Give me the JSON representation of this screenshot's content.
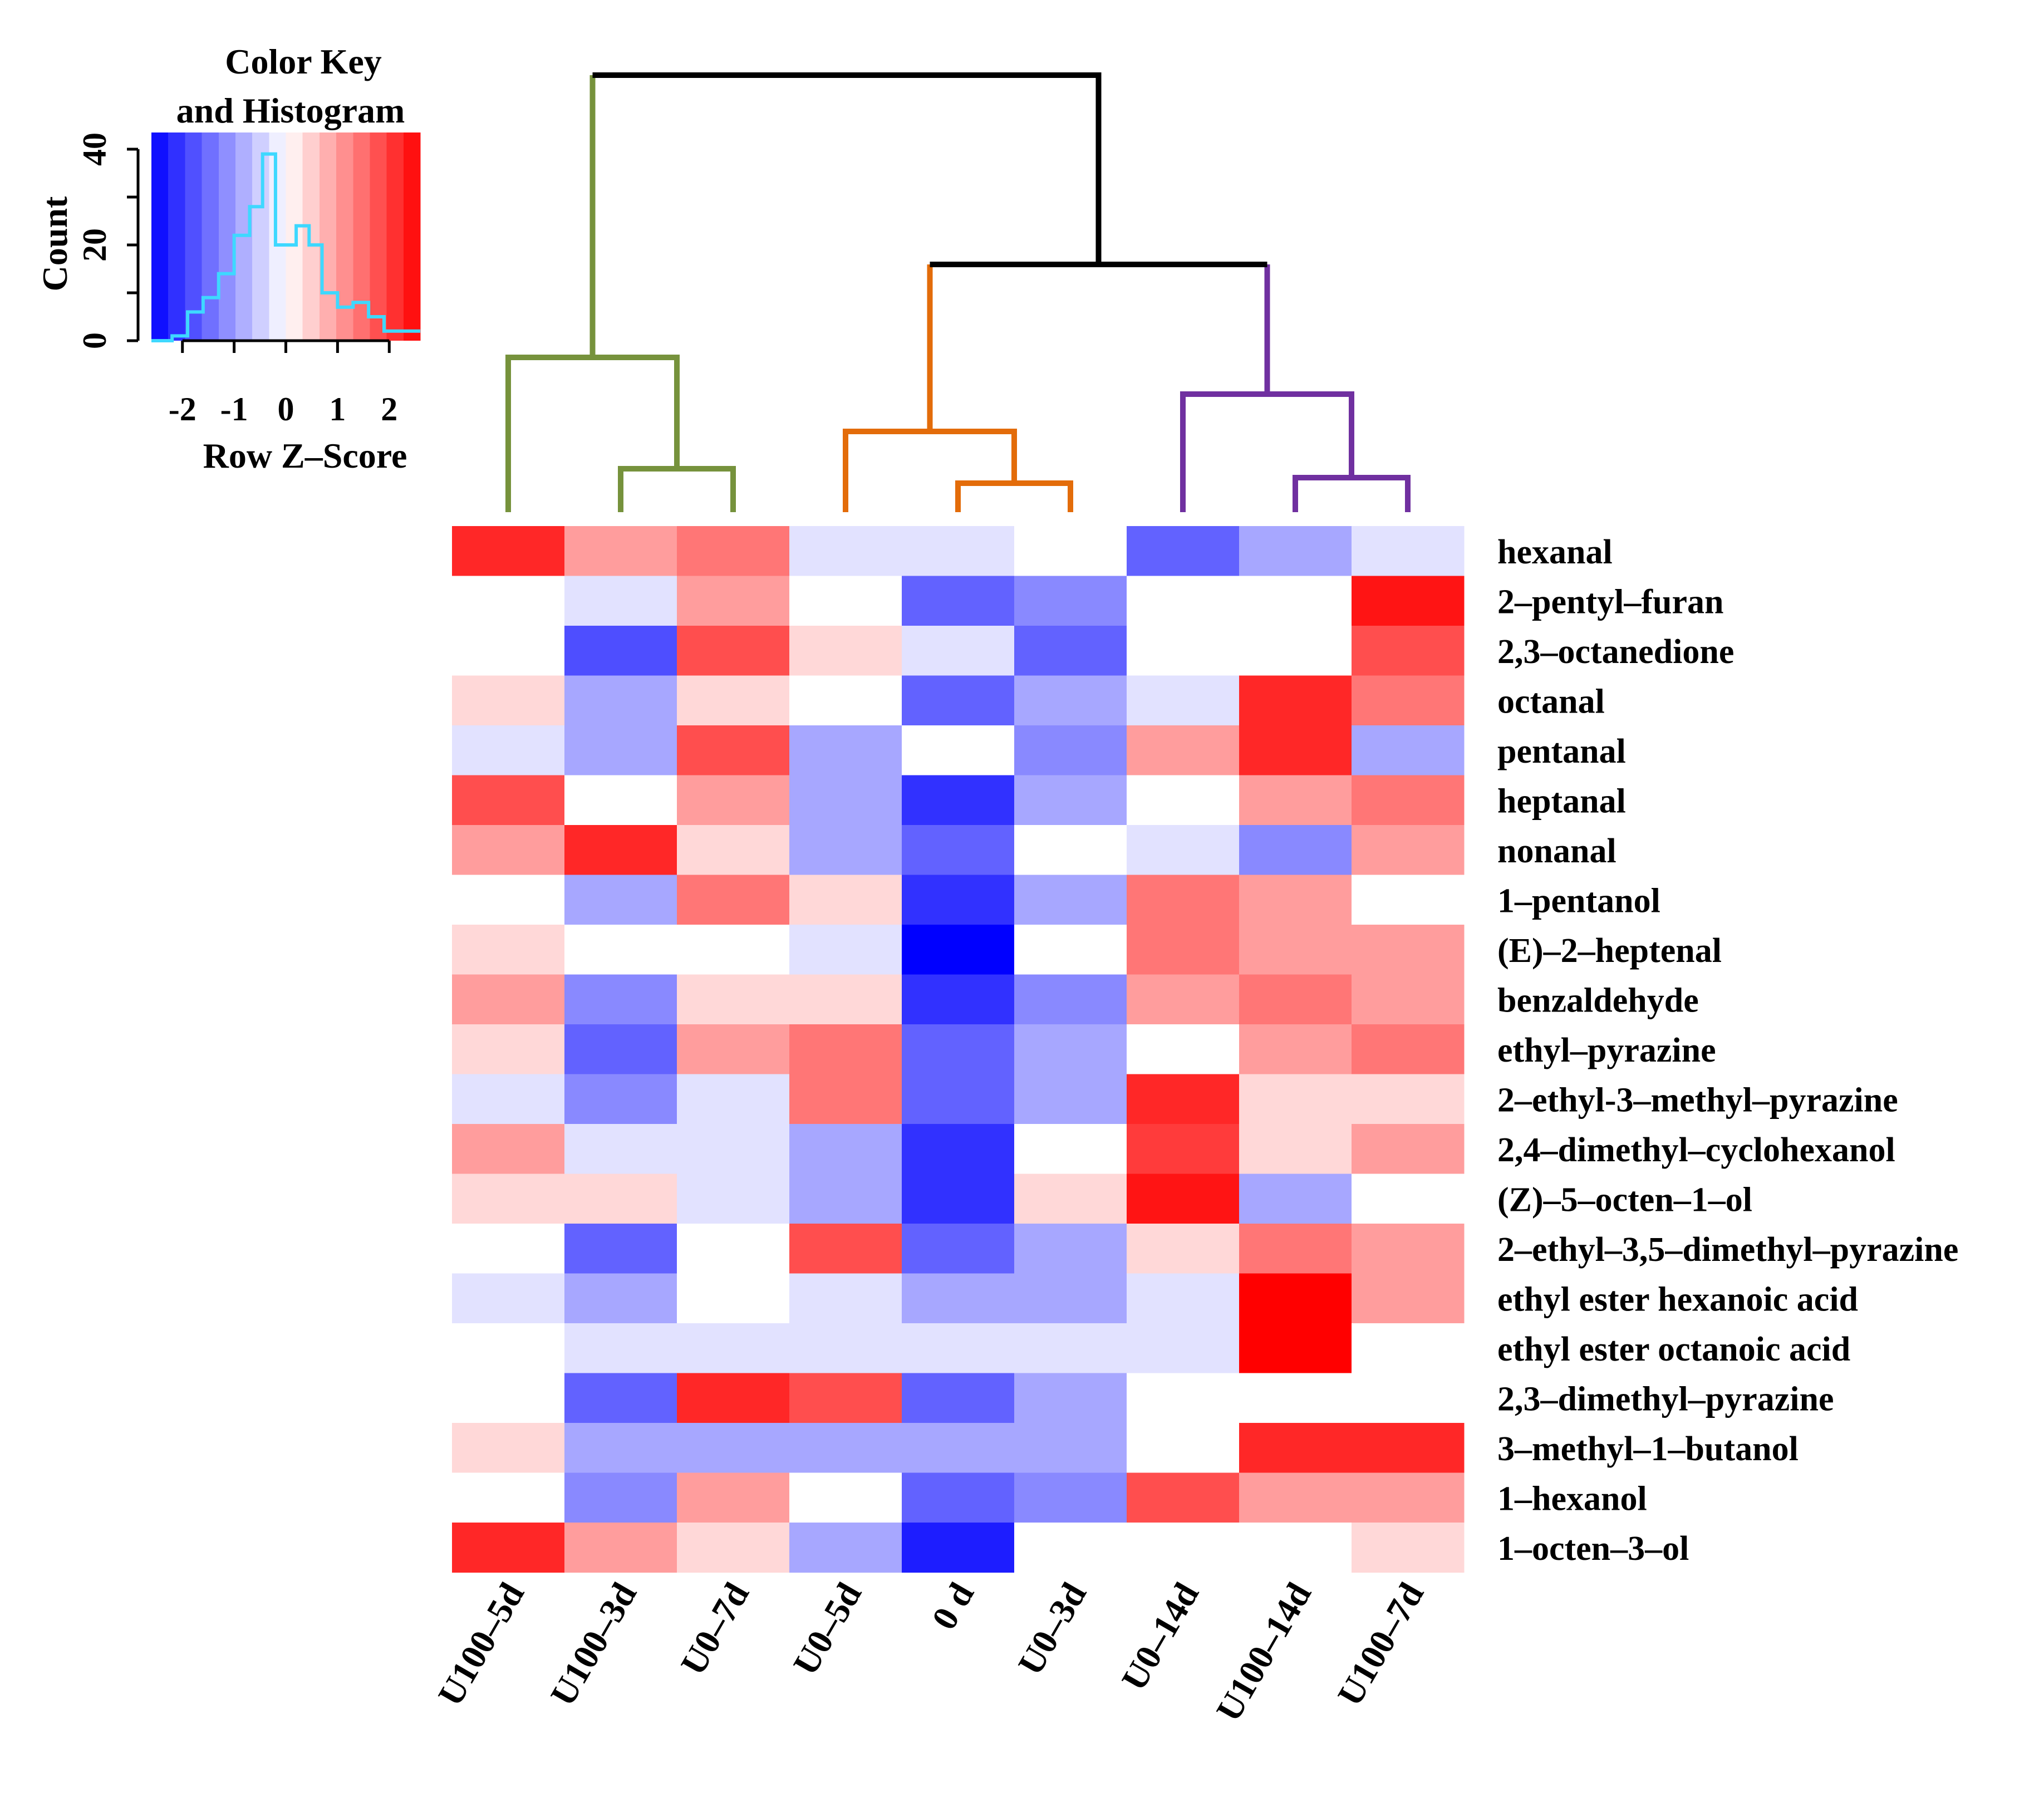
{
  "chart_data": {
    "type": "heatmap",
    "title": "",
    "color_key": {
      "title_line1": "Color Key",
      "title_line2": "and Histogram",
      "xlabel": "Row Z–Score",
      "ylabel": "Count",
      "xticks": [
        "-2",
        "-1",
        "0",
        "1",
        "2"
      ],
      "yticks": [
        "0",
        "20",
        "40"
      ],
      "x_range": [
        -2.6,
        2.6
      ],
      "y_range": [
        0,
        40
      ],
      "low_color": "#0000ff",
      "mid_color": "#ffffff",
      "high_color": "#ff0000",
      "histogram_color": "#3ed8ff",
      "histogram": {
        "bin_edges": [
          -2.6,
          -2.2,
          -1.9,
          -1.6,
          -1.3,
          -1.0,
          -0.7,
          -0.45,
          -0.2,
          0.2,
          0.45,
          0.7,
          1.0,
          1.3,
          1.6,
          1.9,
          2.2,
          2.6
        ],
        "counts": [
          0,
          1,
          6,
          9,
          14,
          22,
          28,
          39,
          20,
          24,
          20,
          10,
          7,
          8,
          5,
          2,
          2
        ]
      }
    },
    "dendrogram_colors": {
      "root": "#000000",
      "group1": "#76923c",
      "group2": "#e36c0a",
      "group3": "#7030a0"
    },
    "columns": [
      "U100–5d",
      "U100–3d",
      "U0–7d",
      "U0–5d",
      "0 d",
      "U0–3d",
      "U0–14d",
      "U100–14d",
      "U100–7d"
    ],
    "rows": [
      "hexanal",
      "2–pentyl–furan",
      "2,3–octanedione",
      "octanal",
      "pentanal",
      "heptanal",
      "nonanal",
      "1–pentanol",
      "(E)–2–heptenal",
      "benzaldehyde",
      "ethyl–pyrazine",
      "2–ethyl-3–methyl–pyrazine",
      "2,4–dimethyl–cyclohexanol",
      "(Z)–5–octen–1–ol",
      "2–ethyl–3,5–dimethyl–pyrazine",
      "ethyl ester hexanoic acid",
      "ethyl ester octanoic acid",
      "2,3–dimethyl–pyrazine",
      "3–methyl–1–butanol",
      "1–hexanol",
      "1–octen–3–ol"
    ],
    "values": [
      [
        2.2,
        1.0,
        1.4,
        -0.3,
        -0.3,
        0,
        -1.6,
        -0.9,
        -0.3
      ],
      [
        0,
        -0.3,
        1.0,
        0,
        -1.6,
        -1.2,
        0,
        0,
        2.4
      ],
      [
        0,
        -1.8,
        1.8,
        0.4,
        -0.3,
        -1.6,
        0,
        0,
        1.8
      ],
      [
        0.4,
        -0.9,
        0.4,
        0,
        -1.6,
        -0.9,
        -0.3,
        2.2,
        1.4
      ],
      [
        -0.3,
        -0.9,
        1.8,
        -0.9,
        0,
        -1.2,
        1.0,
        2.2,
        -0.9
      ],
      [
        1.8,
        0,
        1.0,
        -0.9,
        -2.1,
        -0.9,
        0,
        1.0,
        1.4
      ],
      [
        1.0,
        2.2,
        0.4,
        -0.9,
        -1.6,
        0,
        -0.3,
        -1.2,
        1.0
      ],
      [
        0,
        -0.9,
        1.4,
        0.4,
        -2.1,
        -0.9,
        1.4,
        1.0,
        0
      ],
      [
        0.4,
        0,
        0,
        -0.3,
        -2.6,
        0,
        1.4,
        1.0,
        1.0
      ],
      [
        1.0,
        -1.2,
        0.4,
        0.4,
        -2.1,
        -1.2,
        1.0,
        1.4,
        1.0
      ],
      [
        0.4,
        -1.6,
        1.0,
        1.4,
        -1.6,
        -0.9,
        0,
        1.0,
        1.4
      ],
      [
        -0.3,
        -1.2,
        -0.3,
        1.4,
        -1.6,
        -0.9,
        2.2,
        0.4,
        0.4
      ],
      [
        1.0,
        -0.3,
        -0.3,
        -0.9,
        -2.1,
        0,
        2.0,
        0.4,
        1.0
      ],
      [
        0.4,
        0.4,
        -0.3,
        -0.9,
        -2.1,
        0.4,
        2.4,
        -0.9,
        0
      ],
      [
        0,
        -1.6,
        0,
        1.8,
        -1.6,
        -0.9,
        0.4,
        1.4,
        1.0
      ],
      [
        -0.3,
        -0.9,
        0,
        -0.3,
        -0.9,
        -0.9,
        -0.3,
        2.6,
        1.0
      ],
      [
        0,
        -0.3,
        -0.3,
        -0.3,
        -0.3,
        -0.3,
        -0.3,
        2.6,
        0
      ],
      [
        0,
        -1.6,
        2.2,
        1.8,
        -1.6,
        -0.9,
        0,
        0,
        0
      ],
      [
        0.4,
        -0.9,
        -0.9,
        -0.9,
        -0.9,
        -0.9,
        0,
        2.2,
        2.2
      ],
      [
        0,
        -1.2,
        1.0,
        0,
        -1.6,
        -1.2,
        1.8,
        1.0,
        1.0
      ],
      [
        2.2,
        1.0,
        0.4,
        -0.9,
        -2.3,
        0,
        0,
        0,
        0.4
      ]
    ]
  }
}
